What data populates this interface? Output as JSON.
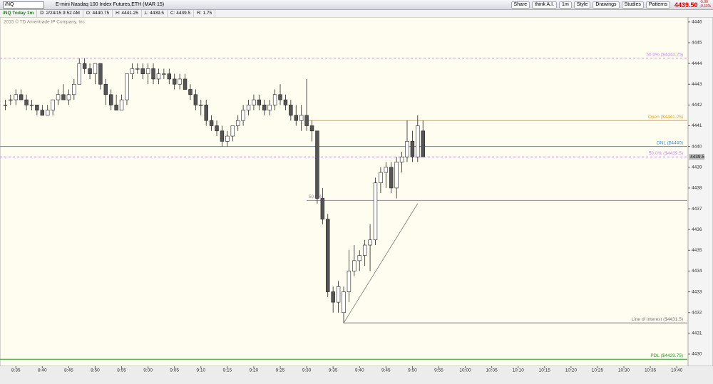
{
  "toolbar": {
    "symbol": "/NQ",
    "description": "E-mini Nasdaq 100 Index Futures,ETH (MAR 15)",
    "buttons": [
      "Share",
      "think A.I.",
      "1m",
      "Style",
      "Drawings",
      "Studies",
      "Patterns"
    ],
    "last": "4439.50",
    "change": "-5.00",
    "change_pct": "-0.11%"
  },
  "info_bar": {
    "chart_name": "/NQ Today 1m",
    "date": "D: 2/24/15 9:52 AM",
    "open": "O: 4440.75",
    "high": "H: 4441.25",
    "low": "L: 4439.5",
    "close": "C: 4439.5",
    "range": "R: 1.75"
  },
  "chart_data": {
    "type": "candlestick",
    "subtitle": "2015 © TD Ameritrade IP Company, Inc.",
    "x": [
      "8:33",
      "8:34",
      "8:35",
      "8:36",
      "8:37",
      "8:38",
      "8:39",
      "8:40",
      "8:41",
      "8:42",
      "8:43",
      "8:44",
      "8:45",
      "8:46",
      "8:47",
      "8:48",
      "8:49",
      "8:50",
      "8:51",
      "8:52",
      "8:53",
      "8:54",
      "8:55",
      "8:56",
      "8:57",
      "8:58",
      "8:59",
      "9:00",
      "9:01",
      "9:02",
      "9:03",
      "9:04",
      "9:05",
      "9:06",
      "9:07",
      "9:08",
      "9:09",
      "9:10",
      "9:11",
      "9:12",
      "9:13",
      "9:14",
      "9:15",
      "9:16",
      "9:17",
      "9:18",
      "9:19",
      "9:20",
      "9:21",
      "9:22",
      "9:23",
      "9:24",
      "9:25",
      "9:26",
      "9:27",
      "9:28",
      "9:29",
      "9:30",
      "9:31",
      "9:32",
      "9:33",
      "9:34",
      "9:35",
      "9:36",
      "9:37",
      "9:38",
      "9:39",
      "9:40",
      "9:41",
      "9:42",
      "9:43",
      "9:44",
      "9:45",
      "9:46",
      "9:47",
      "9:48",
      "9:49",
      "9:50",
      "9:51",
      "9:52"
    ],
    "open": [
      4442.0,
      4442.25,
      4442.25,
      4442.5,
      4442.25,
      4442.0,
      4442.0,
      4441.75,
      4441.5,
      4441.75,
      4442.25,
      4442.5,
      4442.25,
      4442.5,
      4443.0,
      4444.0,
      4443.75,
      4443.5,
      4444.0,
      4443.0,
      4442.5,
      4442.0,
      4441.75,
      4442.25,
      4443.5,
      4443.75,
      4443.75,
      4443.5,
      4443.75,
      4443.25,
      4443.5,
      4443.5,
      4443.25,
      4443.0,
      4443.25,
      4442.75,
      4442.5,
      4442.0,
      4442.0,
      4441.25,
      4441.0,
      4440.75,
      4440.25,
      4440.5,
      4441.0,
      4441.25,
      4441.75,
      4442.0,
      4442.25,
      4442.0,
      4441.75,
      4442.0,
      4442.5,
      4442.25,
      4442.0,
      4441.5,
      4441.25,
      4441.5,
      4441.0,
      4440.75,
      4437.5,
      4436.5,
      4433.0,
      4432.5,
      4432.0,
      4433.0,
      4434.0,
      4434.5,
      4434.75,
      4435.25,
      4435.5,
      4438.25,
      4438.75,
      4439.0,
      4438.0,
      4439.25,
      4439.5,
      4440.25,
      4439.5,
      4440.75
    ],
    "high": [
      4442.25,
      4442.5,
      4442.75,
      4442.75,
      4442.5,
      4442.25,
      4442.0,
      4442.0,
      4442.0,
      4442.25,
      4442.75,
      4443.0,
      4442.75,
      4443.25,
      4444.25,
      4444.25,
      4444.0,
      4444.0,
      4444.0,
      4443.25,
      4442.75,
      4442.5,
      4442.5,
      4443.5,
      4444.0,
      4444.0,
      4444.0,
      4444.0,
      4444.0,
      4443.75,
      4443.75,
      4443.75,
      4443.5,
      4443.5,
      4443.5,
      4443.0,
      4442.75,
      4442.25,
      4442.25,
      4441.5,
      4441.25,
      4441.0,
      4440.75,
      4441.0,
      4441.5,
      4442.0,
      4442.25,
      4442.5,
      4442.5,
      4442.25,
      4442.25,
      4442.75,
      4443.0,
      4442.5,
      4442.25,
      4442.0,
      4442.0,
      4443.25,
      4441.25,
      4440.75,
      4438.0,
      4436.75,
      4433.25,
      4433.5,
      4433.25,
      4435.0,
      4435.25,
      4435.0,
      4435.5,
      4436.25,
      4438.5,
      4439.0,
      4439.25,
      4439.25,
      4439.5,
      4439.75,
      4441.25,
      4440.75,
      4441.5,
      4441.25
    ],
    "low": [
      4441.75,
      4442.0,
      4442.0,
      4442.25,
      4441.75,
      4441.75,
      4441.5,
      4441.5,
      4441.5,
      4441.5,
      4442.0,
      4442.25,
      4442.0,
      4442.25,
      4443.0,
      4443.5,
      4443.25,
      4443.0,
      4442.75,
      4442.0,
      4441.75,
      4441.75,
      4441.75,
      4442.0,
      4443.25,
      4443.5,
      4443.25,
      4443.0,
      4443.0,
      4443.0,
      4443.25,
      4443.0,
      4442.75,
      4442.75,
      4442.75,
      4442.25,
      4441.75,
      4441.5,
      4441.0,
      4440.75,
      4440.5,
      4440.0,
      4440.0,
      4440.25,
      4440.75,
      4441.0,
      4441.5,
      4441.75,
      4441.75,
      4441.5,
      4441.5,
      4441.75,
      4442.0,
      4441.75,
      4441.25,
      4441.0,
      4440.75,
      4440.75,
      4440.25,
      4437.25,
      4436.25,
      4432.75,
      4432.0,
      4432.0,
      4431.5,
      4432.5,
      4433.75,
      4434.0,
      4434.25,
      4434.0,
      4435.25,
      4437.75,
      4438.0,
      4437.75,
      4437.5,
      4438.75,
      4439.25,
      4439.25,
      4439.25,
      4439.5
    ],
    "close": [
      4442.0,
      4442.25,
      4442.5,
      4442.25,
      4442.0,
      4442.0,
      4441.75,
      4441.5,
      4441.75,
      4442.25,
      4442.5,
      4442.25,
      4442.5,
      4443.0,
      4444.0,
      4443.75,
      4443.5,
      4444.0,
      4443.0,
      4442.5,
      4442.0,
      4441.75,
      4442.25,
      4443.5,
      4443.75,
      4443.75,
      4443.5,
      4443.75,
      4443.25,
      4443.5,
      4443.5,
      4443.25,
      4443.0,
      4443.25,
      4442.75,
      4442.5,
      4442.0,
      4442.0,
      4441.25,
      4441.0,
      4440.75,
      4440.25,
      4440.5,
      4441.0,
      4441.25,
      4441.75,
      4442.0,
      4442.25,
      4442.0,
      4441.75,
      4442.0,
      4442.5,
      4442.25,
      4442.0,
      4441.5,
      4441.25,
      4441.5,
      4441.0,
      4440.75,
      4437.5,
      4436.5,
      4433.0,
      4432.5,
      4433.25,
      4433.0,
      4434.0,
      4434.5,
      4434.75,
      4435.25,
      4435.5,
      4438.25,
      4438.75,
      4439.0,
      4438.0,
      4439.25,
      4439.5,
      4440.25,
      4439.5,
      4441.0,
      4439.5
    ],
    "up_color": "#ffffff",
    "down_color": "#555555",
    "outline_color": "#222222",
    "xlim": [
      "8:32",
      "10:42"
    ],
    "xticks": [
      "8:35",
      "8:40",
      "8:45",
      "8:50",
      "8:55",
      "9:00",
      "9:05",
      "9:10",
      "9:15",
      "9:20",
      "9:25",
      "9:30",
      "9:35",
      "9:40",
      "9:45",
      "9:50",
      "9:55",
      "10:00",
      "10:05",
      "10:10",
      "10:15",
      "10:20",
      "10:25",
      "10:30",
      "10:35",
      "10:40"
    ],
    "ylim": [
      4429.45,
      4446.2
    ],
    "yticks": [
      4430,
      4431,
      4432,
      4433,
      4434,
      4435,
      4436,
      4437,
      4438,
      4439,
      4440,
      4441,
      4442,
      4443,
      4444,
      4445,
      4446
    ],
    "levels": [
      {
        "label": "50.0% ($4444.25)",
        "value": 4444.25,
        "color": "#c58ee8",
        "style": "dashed"
      },
      {
        "label": "Open ($4441.25)",
        "value": 4441.25,
        "color": "#f0a020",
        "style": "solid",
        "start": "9:30"
      },
      {
        "label": "ONL ($4440)",
        "value": 4440,
        "color": "#3399dd",
        "style": "solid"
      },
      {
        "label": "50.0% ($4439.5)",
        "value": 4439.5,
        "color": "#c58ee8",
        "style": "dashed"
      },
      {
        "label": "50.0%",
        "value": 4437.4,
        "color": "#a070e0",
        "style": "solid",
        "start": "9:30"
      },
      {
        "label": "Line of interest ($4431.5)",
        "value": 4431.5,
        "color": "#777777",
        "style": "solid",
        "start": "9:37"
      },
      {
        "label": "PDL ($4429.75)",
        "value": 4429.75,
        "color": "#2a9a2a",
        "style": "solid"
      }
    ],
    "trendline": {
      "x": [
        "9:37",
        "9:51"
      ],
      "values": [
        4431.5,
        4437.25
      ],
      "color": "#777777"
    }
  }
}
